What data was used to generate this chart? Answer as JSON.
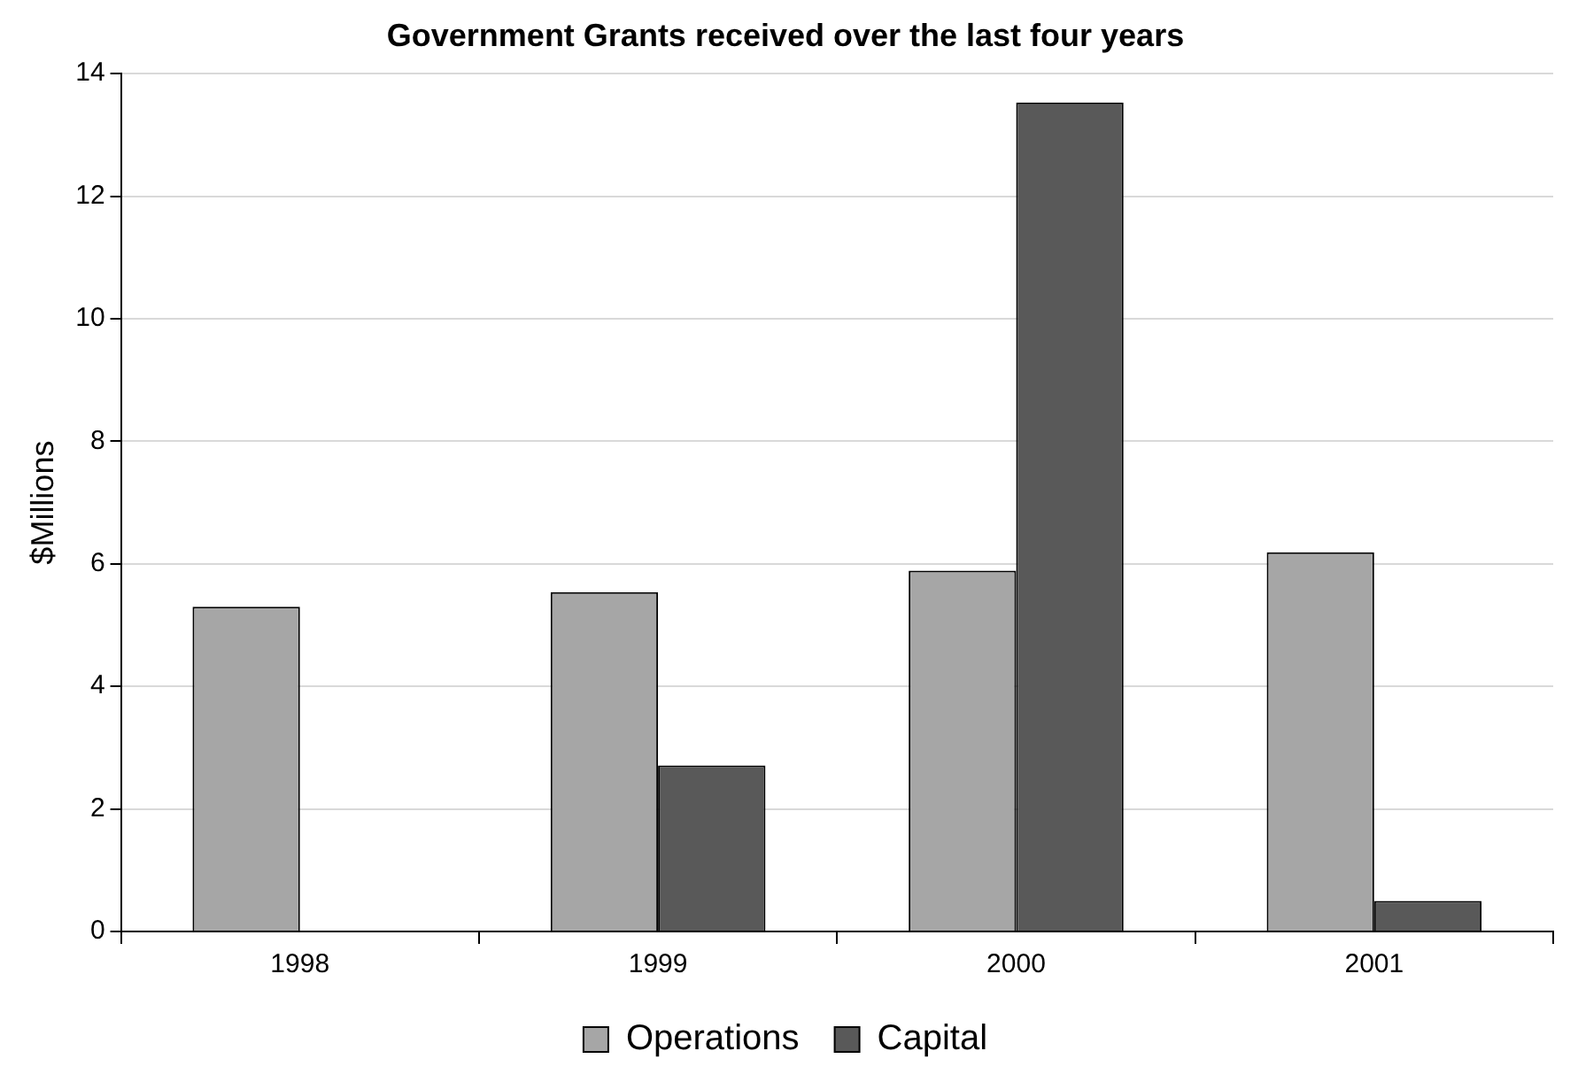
{
  "chart_data": {
    "type": "bar",
    "title": "Government Grants received over the last four years",
    "ylabel": "$Millions",
    "categories": [
      "1998",
      "1999",
      "2000",
      "2001"
    ],
    "series": [
      {
        "name": "Operations",
        "color": "#a6a6a6",
        "values": [
          5.3,
          5.54,
          5.89,
          6.19
        ]
      },
      {
        "name": "Capital",
        "color": "#595959",
        "values": [
          null,
          2.71,
          13.53,
          0.5
        ]
      }
    ],
    "ylim": [
      0,
      14
    ],
    "yticks": [
      0,
      2,
      4,
      6,
      8,
      10,
      12,
      14
    ],
    "grid": "y",
    "legend": "bottom"
  }
}
